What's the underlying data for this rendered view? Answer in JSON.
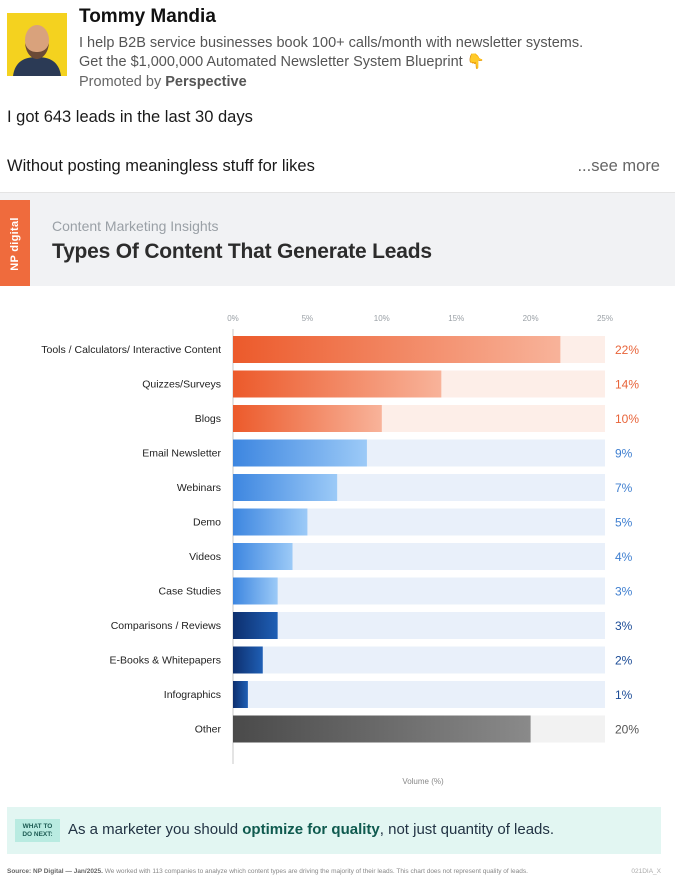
{
  "post": {
    "author": "Tommy Mandia",
    "headline_line1": "I help B2B service businesses book 100+ calls/month with newsletter systems.",
    "headline_line2": "Get the $1,000,000 Automated Newsletter System Blueprint 👇",
    "promoted_prefix": "Promoted by ",
    "promoted_by": "Perspective",
    "text_line1": "I got 643 leads in the last 30 days",
    "text_line2": "Without posting meaningless stuff for likes",
    "see_more": "...see more"
  },
  "infographic": {
    "brand": "NP digital",
    "kicker": "Content Marketing Insights",
    "title": "Types Of Content That Generate Leads",
    "next_badge_line1": "WHAT TO",
    "next_badge_line2": "DO NEXT:",
    "next_text_before": "As a marketer you should ",
    "next_text_bold": "optimize for quality",
    "next_text_after": ", not just quantity of leads.",
    "source_bold": "Source: NP Digital — Jan/2025.",
    "source_rest": " We worked with 113 companies to analyze which content types are driving the majority of their leads. This chart does not represent quality of leads.",
    "source_code": "021DIA_X"
  },
  "colors": {
    "orange": "#ef6b3d",
    "blue": "#4a90e2",
    "navy": "#123f8c",
    "gray": "#555555",
    "teal_bg": "#e2f6f2"
  },
  "chart_data": {
    "type": "bar",
    "orientation": "horizontal",
    "xlabel": "Volume (%)",
    "xlim": [
      0,
      25
    ],
    "xticks": [
      "0%",
      "5%",
      "10%",
      "15%",
      "20%",
      "25%"
    ],
    "categories": [
      "Tools / Calculators/ Interactive Content",
      "Quizzes/Surveys",
      "Blogs",
      "Email Newsletter",
      "Webinars",
      "Demo",
      "Videos",
      "Case Studies",
      "Comparisons / Reviews",
      "E-Books & Whitepapers",
      "Infographics",
      "Other"
    ],
    "values": [
      22,
      14,
      10,
      9,
      7,
      5,
      4,
      3,
      3,
      2,
      1,
      20
    ],
    "labels": [
      "22%",
      "14%",
      "10%",
      "9%",
      "7%",
      "5%",
      "4%",
      "3%",
      "3%",
      "2%",
      "1%",
      "20%"
    ],
    "bar_colors": [
      "orange",
      "orange",
      "orange",
      "blue",
      "blue",
      "blue",
      "blue",
      "blue",
      "navy",
      "navy",
      "navy",
      "gray"
    ],
    "grid": false,
    "legend": "none"
  }
}
